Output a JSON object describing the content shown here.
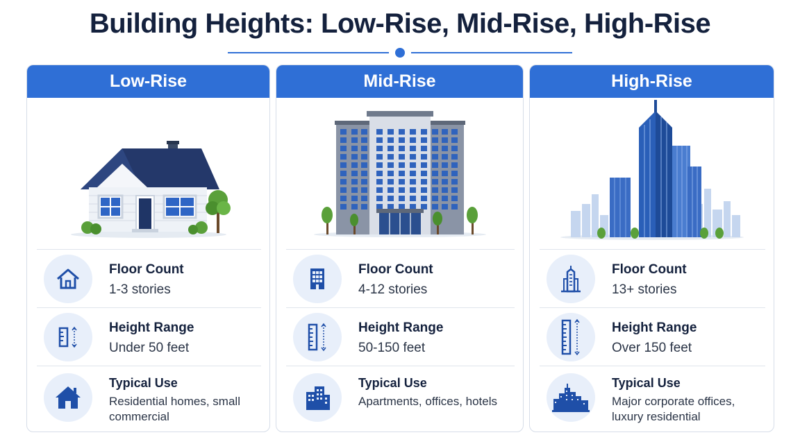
{
  "title": "Building Heights: Low-Rise, Mid-Rise, High-Rise",
  "accent_color": "#2f6fd6",
  "cards": [
    {
      "heading": "Low-Rise",
      "illustration": "house-icon",
      "floor": {
        "label": "Floor Count",
        "value": "1-3 stories",
        "icon": "house-outline-icon"
      },
      "height": {
        "label": "Height Range",
        "value": "Under 50 feet",
        "icon": "ruler-icon"
      },
      "use": {
        "label": "Typical Use",
        "value": "Residential homes, small commercial",
        "icon": "house-solid-icon"
      }
    },
    {
      "heading": "Mid-Rise",
      "illustration": "apartment-building-icon",
      "floor": {
        "label": "Floor Count",
        "value": "4-12 stories",
        "icon": "building-icon"
      },
      "height": {
        "label": "Height Range",
        "value": "50-150 feet",
        "icon": "ruler-icon"
      },
      "use": {
        "label": "Typical Use",
        "value": "Apartments, offices, hotels",
        "icon": "buildings-icon"
      }
    },
    {
      "heading": "High-Rise",
      "illustration": "skyscraper-icon",
      "floor": {
        "label": "Floor Count",
        "value": "13+ stories",
        "icon": "skyscraper-outline-icon"
      },
      "height": {
        "label": "Height Range",
        "value": "Over 150 feet",
        "icon": "ruler-icon"
      },
      "use": {
        "label": "Typical Use",
        "value": "Major corporate offices, luxury residential",
        "icon": "skyline-icon"
      }
    }
  ]
}
